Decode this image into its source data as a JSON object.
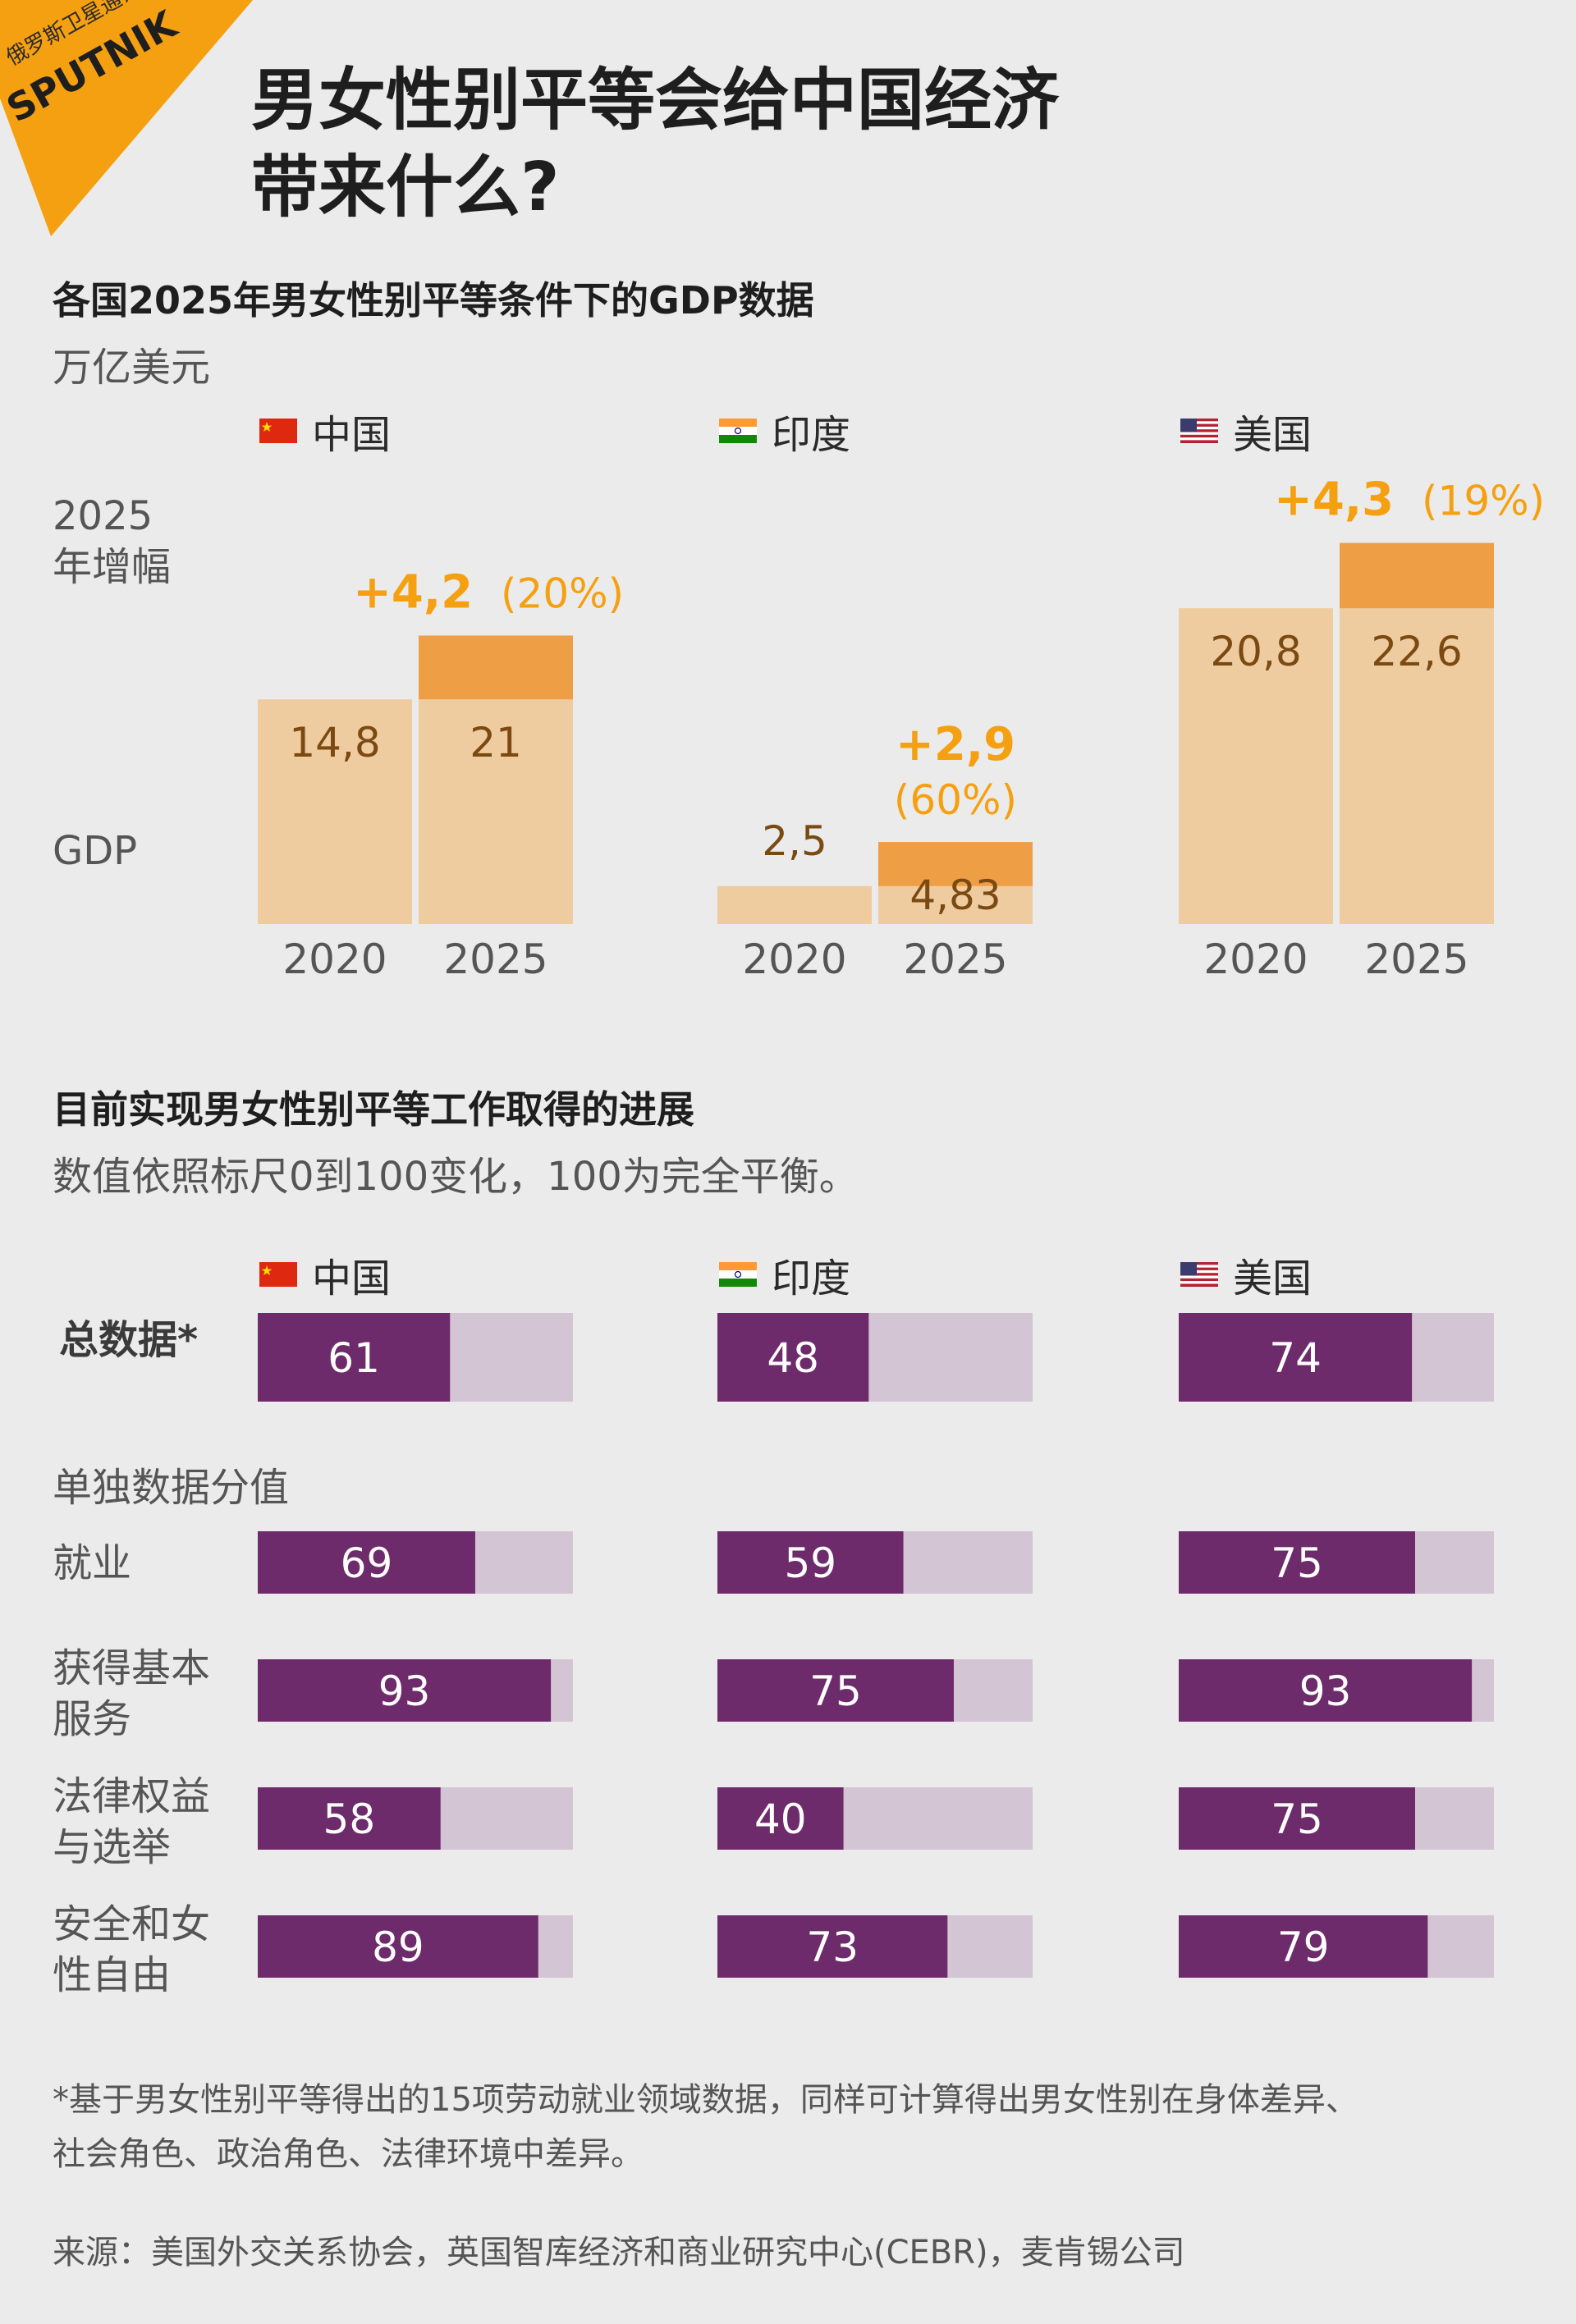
{
  "brand": {
    "publisher_cn": "俄罗斯卫星通讯社",
    "logo_text": "SPUTNIK"
  },
  "title_lines": [
    "男女性别平等会给中国经济",
    "带来什么?"
  ],
  "colors": {
    "accent": "#f5a011",
    "base_bar": "#efcc9f",
    "increase_bar": "#ee9f46",
    "value_text": "#7a4a12",
    "purple": "#6e2b6c",
    "purple_track": "#d3c5d4"
  },
  "section_gdp": {
    "heading": "各国2025年男女性别平等条件下的GDP数据",
    "unit": "万亿美元"
  },
  "section_parity": {
    "heading": "目前实现男女性别平等工作取得的进展",
    "note": "数值依照标尺0到100变化，100为完全平衡。"
  },
  "side_labels": {
    "increase": "2025\n年增幅",
    "gdp": "GDP"
  },
  "countries": [
    {
      "name": "中国",
      "flag": "china-flag-icon"
    },
    {
      "name": "印度",
      "flag": "india-flag-icon"
    },
    {
      "name": "美国",
      "flag": "usa-flag-icon"
    }
  ],
  "chart_data": [
    {
      "type": "bar",
      "title": "各国2025年男女性别平等条件下的GDP数据",
      "ylabel": "万亿美元",
      "categories": [
        "2020",
        "2025"
      ],
      "groups": [
        {
          "country": "中国",
          "gdp_2020": 14.8,
          "gdp_2020_label": "14,8",
          "gdp_2025": 21,
          "gdp_2025_label": "21",
          "increase": 4.2,
          "increase_label": "+4,2",
          "increase_pct_label": "(20%)"
        },
        {
          "country": "印度",
          "gdp_2020": 2.5,
          "gdp_2020_label": "2,5",
          "gdp_2025": 4.83,
          "gdp_2025_label": "4,83",
          "increase": 2.9,
          "increase_label": "+2,9",
          "increase_pct_label": "(60%)"
        },
        {
          "country": "美国",
          "gdp_2020": 20.8,
          "gdp_2020_label": "20,8",
          "gdp_2025": 22.6,
          "gdp_2025_label": "22,6",
          "increase": 4.3,
          "increase_label": "+4,3",
          "increase_pct_label": "(19%)"
        }
      ],
      "legend": [
        "2025年增幅",
        "GDP"
      ]
    },
    {
      "type": "bar",
      "orientation": "horizontal",
      "title": "目前实现男女性别平等工作取得的进展",
      "xlim": [
        0,
        100
      ],
      "series_names": [
        "中国",
        "印度",
        "美国"
      ],
      "total": {
        "label": "总数据*",
        "values": [
          61,
          48,
          74
        ]
      },
      "individual_heading": "单独数据分值",
      "rows": [
        {
          "label": "就业",
          "values": [
            69,
            59,
            75
          ]
        },
        {
          "label": "获得基本\n服务",
          "values": [
            93,
            75,
            93
          ]
        },
        {
          "label": "法律权益\n与选举",
          "values": [
            58,
            40,
            75
          ]
        },
        {
          "label": "安全和女\n性自由",
          "values": [
            89,
            73,
            79
          ]
        }
      ]
    }
  ],
  "footnote": [
    "*基于男女性别平等得出的15项劳动就业领域数据，同样可计算得出男女性别在身体差异、",
    "社会角色、政治角色、法律环境中差异。"
  ],
  "source": "来源：美国外交关系协会，英国智库经济和商业研究中心(CEBR)，麦肯锡公司"
}
